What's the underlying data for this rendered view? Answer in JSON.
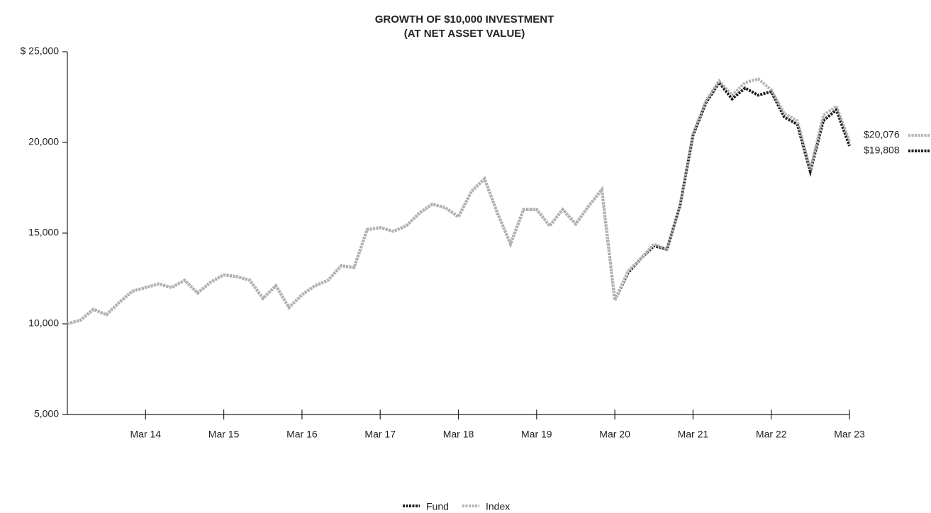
{
  "chart_data": {
    "type": "line",
    "title": "GROWTH OF $10,000 INVESTMENT",
    "subtitle": "(AT NET ASSET VALUE)",
    "categories": [
      null,
      null,
      null,
      null,
      null,
      null,
      "Mar 14",
      null,
      null,
      null,
      null,
      null,
      "Mar 15",
      null,
      null,
      null,
      null,
      null,
      "Mar 16",
      null,
      null,
      null,
      null,
      null,
      "Mar 17",
      null,
      null,
      null,
      null,
      null,
      "Mar 18",
      null,
      null,
      null,
      null,
      null,
      "Mar 19",
      null,
      null,
      null,
      null,
      null,
      "Mar 20",
      null,
      null,
      null,
      null,
      null,
      "Mar 21",
      null,
      null,
      null,
      null,
      null,
      "Mar 22",
      null,
      null,
      null,
      null,
      null,
      "Mar 23"
    ],
    "series": [
      {
        "name": "Fund",
        "color": "#1e1e1e",
        "end_label": "$19,808",
        "values": [
          10000,
          10200,
          10800,
          10500,
          11200,
          11800,
          12000,
          12200,
          12000,
          12400,
          11700,
          12300,
          12700,
          12600,
          12400,
          11400,
          12100,
          10900,
          11600,
          12100,
          12400,
          13200,
          13100,
          15200,
          15300,
          15100,
          15400,
          16100,
          16600,
          16400,
          15900,
          17300,
          18000,
          16100,
          14400,
          16300,
          16300,
          15400,
          16300,
          15500,
          16500,
          17400,
          11300,
          12800,
          13600,
          14300,
          14100,
          16500,
          20400,
          22200,
          23300,
          22400,
          23000,
          22600,
          22800,
          21400,
          21000,
          18400,
          21200,
          21800,
          19808
        ]
      },
      {
        "name": "Index",
        "color": "#b4b4b4",
        "end_label": "$20,076",
        "values": [
          10000,
          10200,
          10800,
          10500,
          11200,
          11800,
          12000,
          12200,
          12000,
          12400,
          11700,
          12300,
          12700,
          12600,
          12400,
          11400,
          12100,
          10900,
          11600,
          12100,
          12400,
          13200,
          13100,
          15200,
          15300,
          15100,
          15400,
          16100,
          16600,
          16400,
          15900,
          17300,
          18000,
          16100,
          14400,
          16300,
          16300,
          15400,
          16300,
          15500,
          16500,
          17400,
          11300,
          12900,
          13600,
          14400,
          14100,
          16500,
          20500,
          22300,
          23400,
          22600,
          23300,
          23500,
          22900,
          21600,
          21200,
          18500,
          21500,
          22000,
          20076
        ]
      }
    ],
    "ylim": [
      5000,
      25000
    ],
    "yticks": [
      {
        "value": 5000,
        "label": "5,000"
      },
      {
        "value": 10000,
        "label": "10,000"
      },
      {
        "value": 15000,
        "label": "15,000"
      },
      {
        "value": 20000,
        "label": "20,000"
      },
      {
        "value": 25000,
        "label": "$  25,000"
      }
    ],
    "legend": "bottom"
  }
}
